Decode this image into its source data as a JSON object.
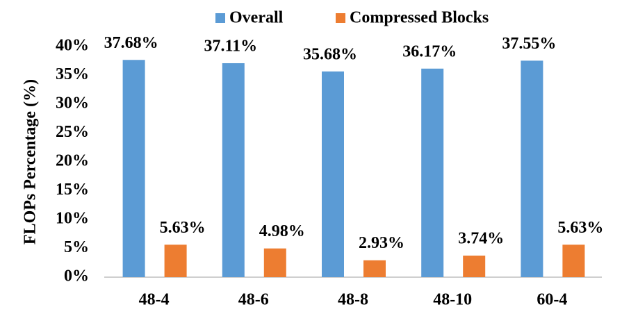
{
  "chart_data": {
    "type": "bar",
    "y_label": "FLOPs Percentage (%)",
    "categories": [
      "48-4",
      "48-6",
      "48-8",
      "48-10",
      "60-4"
    ],
    "series": [
      {
        "name": "Overall",
        "color": "#5b9bd5",
        "values": [
          37.68,
          37.11,
          35.68,
          36.17,
          37.55
        ],
        "value_labels": [
          "37.68%",
          "37.11%",
          "35.68%",
          "36.17%",
          "37.55%"
        ]
      },
      {
        "name": "Compressed Blocks",
        "color": "#ed7d31",
        "values": [
          5.63,
          4.98,
          2.93,
          3.74,
          5.63
        ],
        "value_labels": [
          "5.63%",
          "4.98%",
          "2.93%",
          "3.74%",
          "5.63%"
        ]
      }
    ],
    "ylim": [
      0,
      40
    ],
    "yticks": [
      {
        "value": 0,
        "label": "0%"
      },
      {
        "value": 5,
        "label": "5%"
      },
      {
        "value": 10,
        "label": "10%"
      },
      {
        "value": 15,
        "label": "15%"
      },
      {
        "value": 20,
        "label": "20%"
      },
      {
        "value": 25,
        "label": "25%"
      },
      {
        "value": 30,
        "label": "30%"
      },
      {
        "value": 35,
        "label": "35%"
      },
      {
        "value": 40,
        "label": "40%"
      }
    ],
    "grid": false,
    "legend": "top"
  }
}
